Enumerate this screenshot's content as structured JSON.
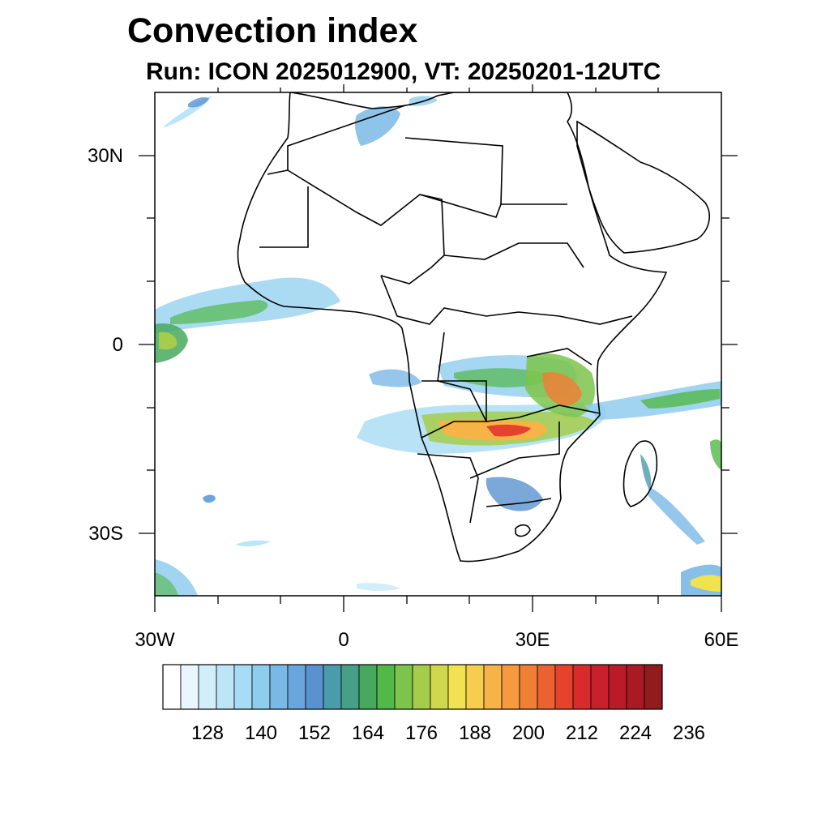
{
  "title": "Convection index",
  "subtitle": "Run: ICON 2025012900,  VT: 20250201-12UTC",
  "map": {
    "region": "Africa and adjacent oceans",
    "lon_range": [
      -30,
      60
    ],
    "lat_range": [
      -40,
      40
    ],
    "x_ticks": [
      {
        "lon": -30,
        "label": "30W"
      },
      {
        "lon": 0,
        "label": "0"
      },
      {
        "lon": 30,
        "label": "30E"
      },
      {
        "lon": 60,
        "label": "60E"
      }
    ],
    "y_ticks": [
      {
        "lat": 30,
        "label": "30N"
      },
      {
        "lat": 0,
        "label": "0"
      },
      {
        "lat": -30,
        "label": "30S"
      }
    ],
    "minor_lon_ticks": [
      -20,
      -10,
      10,
      20,
      40,
      50
    ],
    "minor_lat_ticks": [
      20,
      10,
      -10,
      -20
    ]
  },
  "colorbar": {
    "colors": [
      "#ffffff",
      "#e9f6fd",
      "#d3eefb",
      "#bde5f8",
      "#a6dcf5",
      "#8fcdef",
      "#7ab8e6",
      "#6aa5dc",
      "#5a92d0",
      "#4a9bab",
      "#479f87",
      "#46a95e",
      "#52b848",
      "#7cc44c",
      "#a5cd4b",
      "#cfd84b",
      "#f0e34f",
      "#f7cd4e",
      "#f6b447",
      "#f59a3e",
      "#f07f35",
      "#eb6131",
      "#e5432d",
      "#d82b2c",
      "#c9202c",
      "#b91b29",
      "#a81a24",
      "#921b1e"
    ],
    "labels": [
      "128",
      "140",
      "152",
      "164",
      "176",
      "188",
      "200",
      "212",
      "224",
      "236"
    ],
    "label_start_box": 2,
    "label_step": 3
  }
}
